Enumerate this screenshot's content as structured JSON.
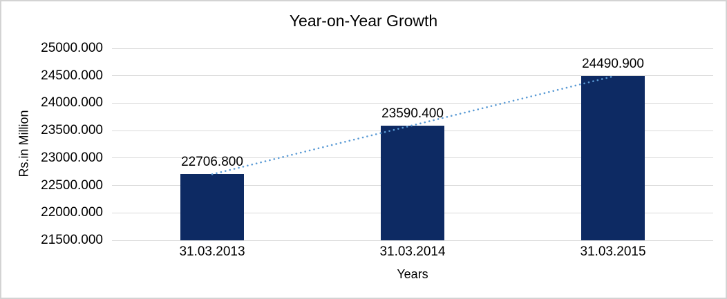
{
  "chart_data": {
    "type": "bar",
    "title": "Year-on-Year Growth",
    "xlabel": "Years",
    "ylabel": "Rs.in Million",
    "categories": [
      "31.03.2013",
      "31.03.2014",
      "31.03.2015"
    ],
    "values": [
      22706.8,
      23590.4,
      24490.9
    ],
    "data_labels": [
      "22706.800",
      "23590.400",
      "24490.900"
    ],
    "ylim": [
      21500,
      25000
    ],
    "y_tick_step": 500,
    "y_ticks": [
      "25000.000",
      "24500.000",
      "24000.000",
      "23500.000",
      "23000.000",
      "22500.000",
      "22000.000",
      "21500.000"
    ],
    "grid": true,
    "legend": "none",
    "trendline": {
      "type": "linear",
      "style": "dotted"
    },
    "colors": {
      "bar": "#0d2a63",
      "trendline": "#5b9bd5",
      "gridline": "#d9d9d9",
      "text": "#000000",
      "border": "#d3d3d3",
      "background": "#ffffff"
    }
  }
}
